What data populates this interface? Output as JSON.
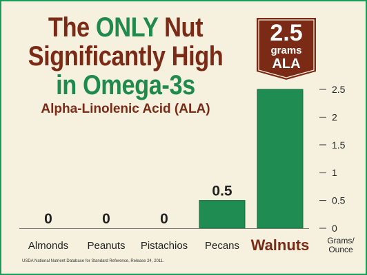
{
  "headline": {
    "part1": "The ",
    "highlight": "ONLY",
    "part2": " Nut",
    "line2": "Significantly High",
    "line3": "in Omega-3s"
  },
  "subtitle": "Alpha-Linolenic Acid (ALA)",
  "badge": {
    "value": "2.5",
    "unit": "grams",
    "name": "ALA"
  },
  "source": "USDA National Nutrient Database for Standard Reference, Release 24, 2011.",
  "colors": {
    "bar": "#1f8c51",
    "bar_edge": "#116b3a",
    "title_brown": "#7b2a16",
    "title_green": "#1f8a4c",
    "background": "#f6f1df",
    "border": "#1d9a57"
  },
  "chart_data": {
    "type": "bar",
    "categories": [
      "Almonds",
      "Peanuts",
      "Pistachios",
      "Pecans",
      "Walnuts"
    ],
    "values": [
      0,
      0,
      0,
      0.5,
      2.5
    ],
    "value_labels": [
      "0",
      "0",
      "0",
      "0.5",
      ""
    ],
    "highlight_category": "Walnuts",
    "y_ticks": [
      0,
      0.5,
      1,
      1.5,
      2,
      2.5
    ],
    "y_tick_labels": [
      "0",
      "0.5",
      "1",
      "1.5",
      "2",
      "2.5"
    ],
    "ylim": [
      0,
      2.5
    ],
    "y_unit_label": [
      "Grams/",
      "Ounce"
    ],
    "y_axis_side": "right",
    "grid": false
  }
}
